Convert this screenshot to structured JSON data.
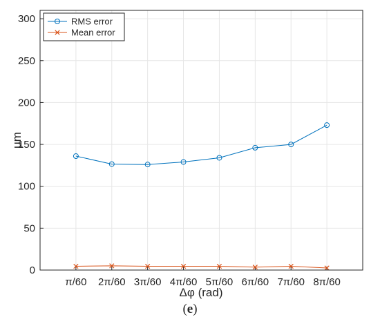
{
  "chart_data": {
    "type": "line",
    "categories": [
      "π/60",
      "2π/60",
      "3π/60",
      "4π/60",
      "5π/60",
      "6π/60",
      "7π/60",
      "8π/60"
    ],
    "series": [
      {
        "name": "RMS error",
        "marker": "circle",
        "color": "#0072BD",
        "values": [
          136,
          126.5,
          126,
          129,
          134,
          146,
          150,
          173
        ]
      },
      {
        "name": "Mean error",
        "marker": "x",
        "color": "#D95319",
        "values": [
          4.5,
          5,
          4.5,
          4.5,
          4.5,
          3.5,
          4.5,
          2.5
        ]
      }
    ],
    "xlabel": "Δφ (rad)",
    "ylabel": "μm",
    "ylim": [
      0,
      310
    ],
    "yticks": [
      0,
      50,
      100,
      150,
      200,
      250,
      300
    ],
    "grid": true,
    "legend": "top-left",
    "caption": {
      "open": "(",
      "letter": "e",
      "close": ")"
    }
  }
}
